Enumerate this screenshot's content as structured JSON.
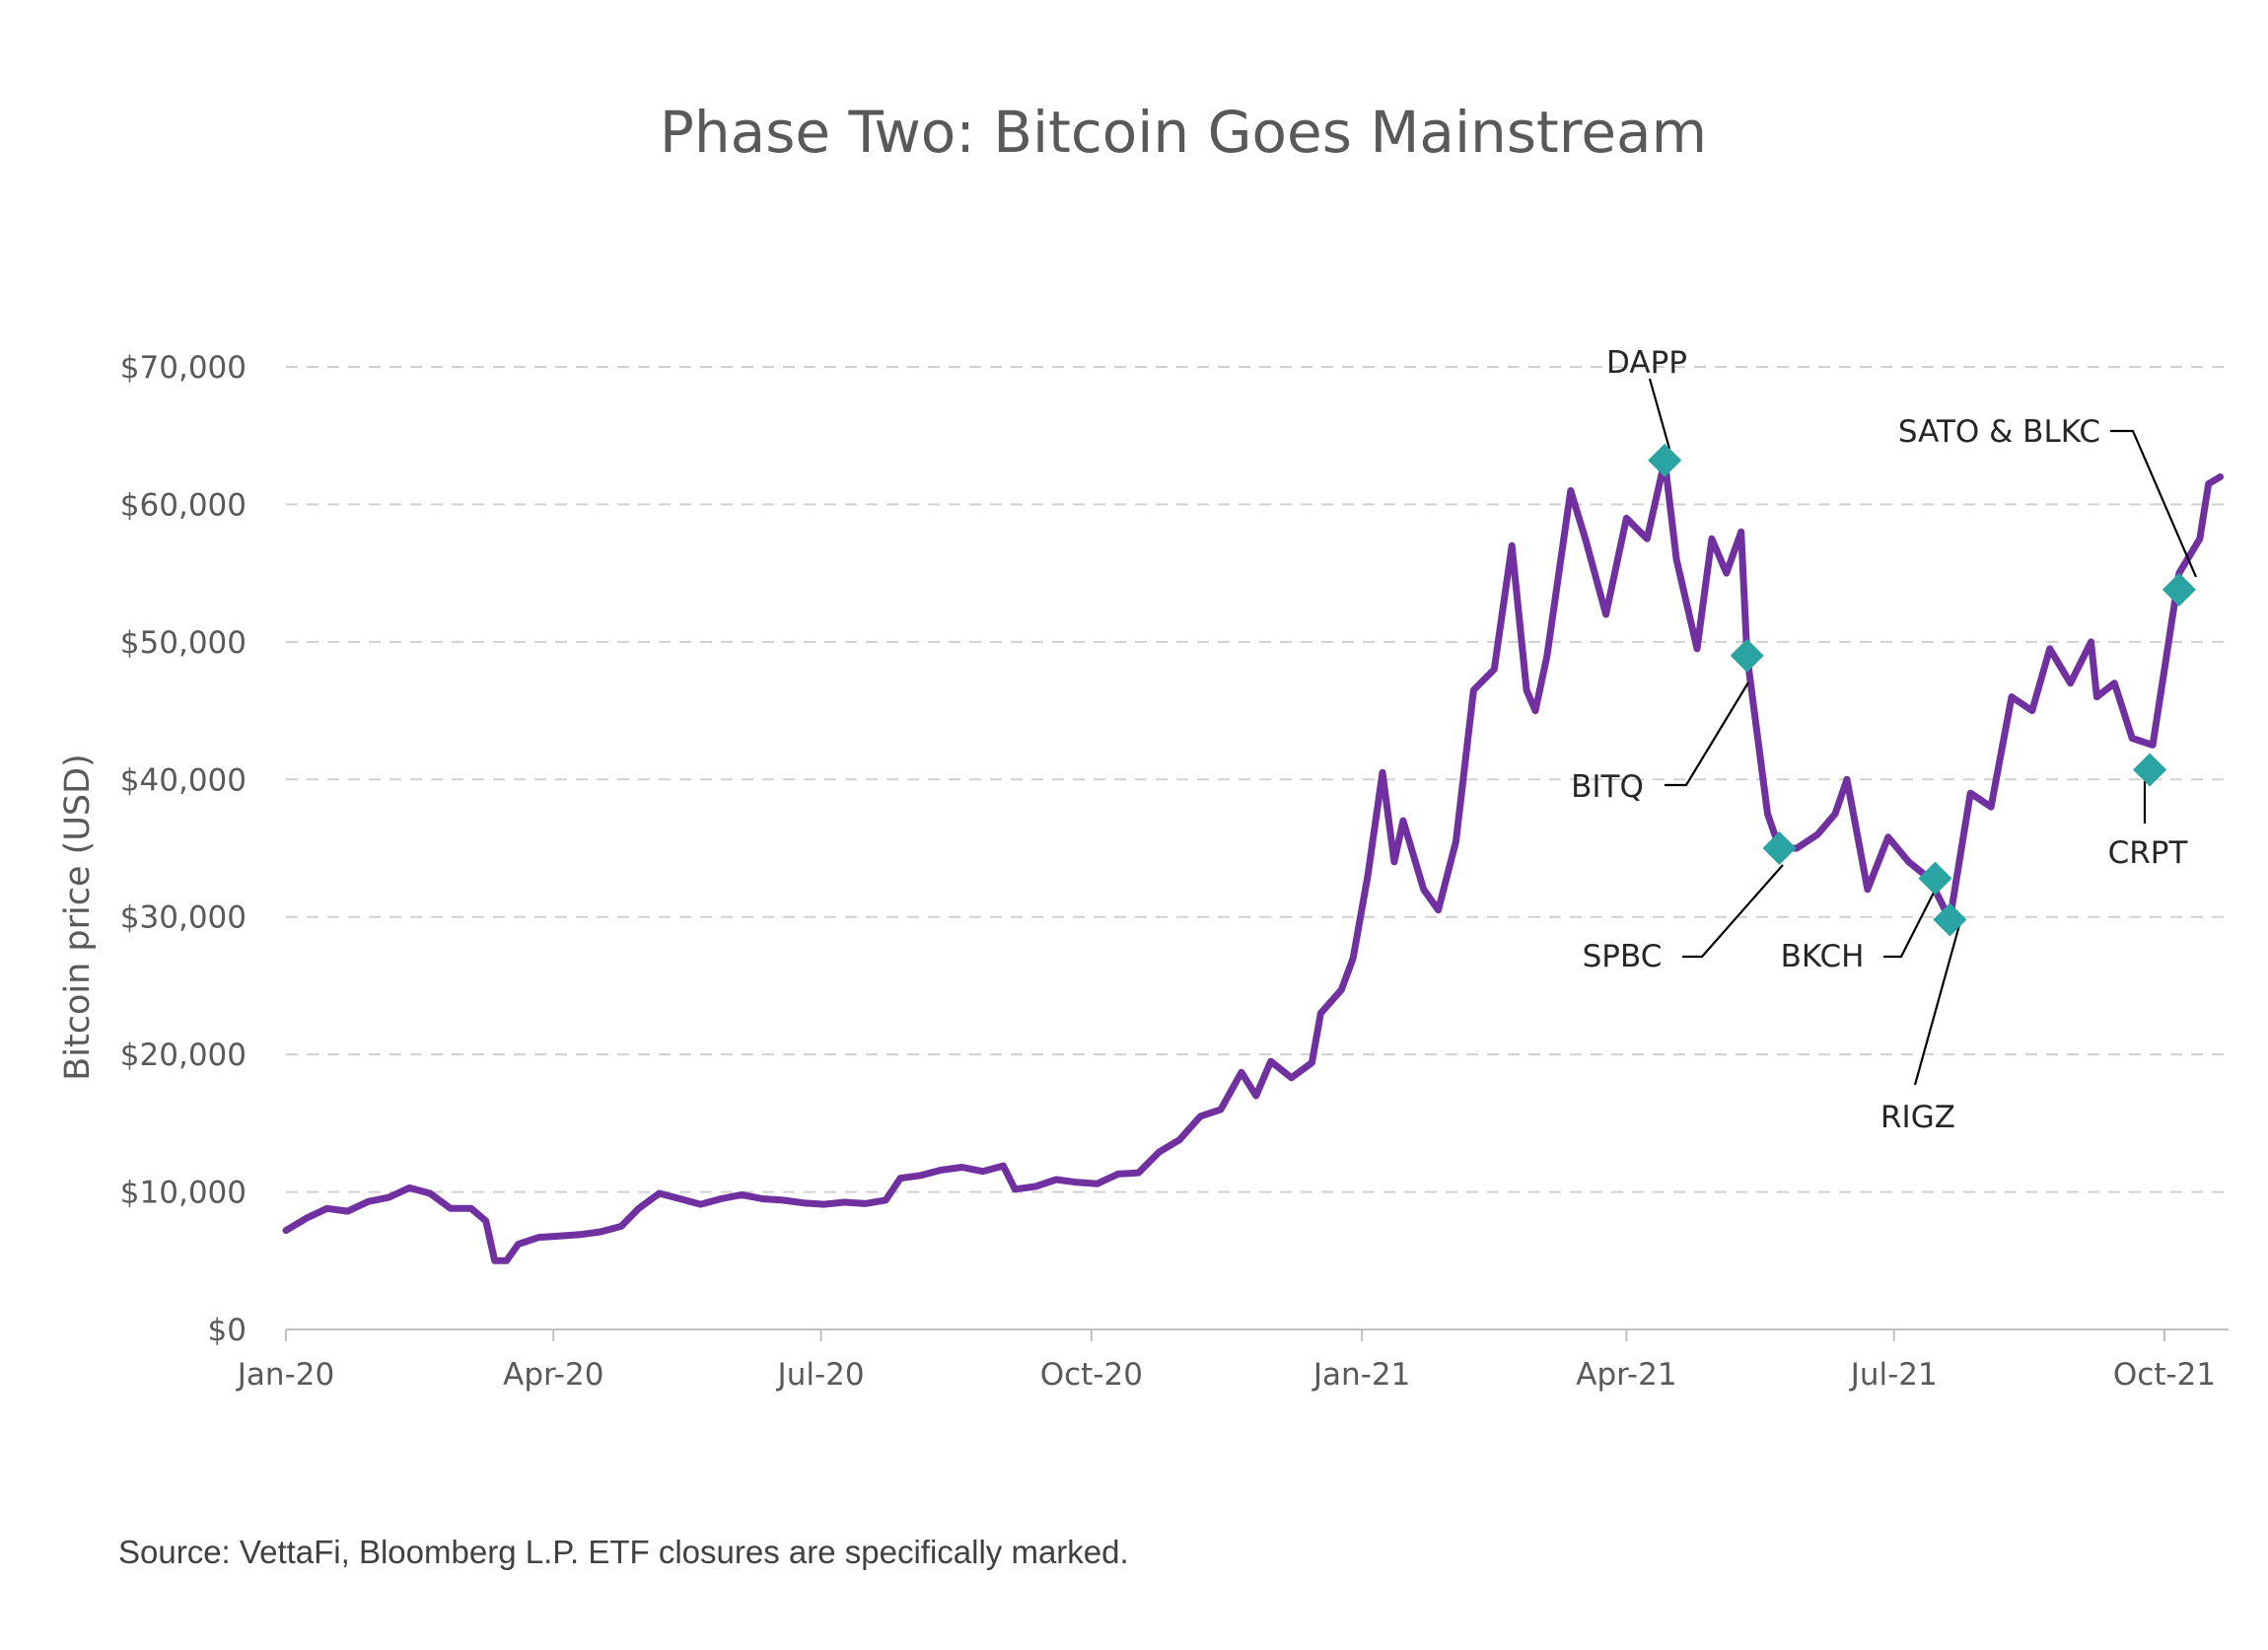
{
  "chart_data": {
    "type": "line",
    "title": "Phase Two: Bitcoin Goes Mainstream",
    "ylabel": "Bitcoin price (USD)",
    "xlabel": "",
    "ylim": [
      0,
      70000
    ],
    "yticks": [
      0,
      10000,
      20000,
      30000,
      40000,
      50000,
      60000,
      70000
    ],
    "ytick_labels": [
      "$0",
      "$10,000",
      "$20,000",
      "$30,000",
      "$40,000",
      "$50,000",
      "$60,000",
      "$70,000"
    ],
    "xticks": [
      "2020-01-01",
      "2020-04-01",
      "2020-07-01",
      "2020-10-01",
      "2021-01-01",
      "2021-04-01",
      "2021-07-01",
      "2021-10-01"
    ],
    "xtick_labels": [
      "Jan-20",
      "Apr-20",
      "Jul-20",
      "Oct-20",
      "Jan-21",
      "Apr-21",
      "Jul-21",
      "Oct-21"
    ],
    "xlim": [
      "2020-01-01",
      "2021-10-20"
    ],
    "grid": "horizontal-dashed",
    "line_color": "#7030a0",
    "marker_color": "#2aa3a3",
    "series": [
      {
        "values": [
          [
            "2020-01-01",
            7200
          ],
          [
            "2020-01-08",
            8100
          ],
          [
            "2020-01-15",
            8800
          ],
          [
            "2020-01-22",
            8600
          ],
          [
            "2020-01-29",
            9300
          ],
          [
            "2020-02-05",
            9600
          ],
          [
            "2020-02-12",
            10300
          ],
          [
            "2020-02-19",
            9900
          ],
          [
            "2020-02-26",
            8800
          ],
          [
            "2020-03-04",
            8800
          ],
          [
            "2020-03-09",
            7900
          ],
          [
            "2020-03-12",
            5000
          ],
          [
            "2020-03-16",
            5000
          ],
          [
            "2020-03-20",
            6200
          ],
          [
            "2020-03-27",
            6700
          ],
          [
            "2020-04-03",
            6800
          ],
          [
            "2020-04-10",
            6900
          ],
          [
            "2020-04-17",
            7100
          ],
          [
            "2020-04-24",
            7500
          ],
          [
            "2020-04-30",
            8800
          ],
          [
            "2020-05-07",
            9900
          ],
          [
            "2020-05-14",
            9500
          ],
          [
            "2020-05-21",
            9100
          ],
          [
            "2020-05-28",
            9500
          ],
          [
            "2020-06-04",
            9800
          ],
          [
            "2020-06-11",
            9500
          ],
          [
            "2020-06-18",
            9400
          ],
          [
            "2020-06-25",
            9200
          ],
          [
            "2020-07-02",
            9100
          ],
          [
            "2020-07-09",
            9250
          ],
          [
            "2020-07-16",
            9150
          ],
          [
            "2020-07-23",
            9400
          ],
          [
            "2020-07-28",
            11000
          ],
          [
            "2020-08-04",
            11200
          ],
          [
            "2020-08-11",
            11600
          ],
          [
            "2020-08-18",
            11800
          ],
          [
            "2020-08-25",
            11500
          ],
          [
            "2020-09-01",
            11900
          ],
          [
            "2020-09-05",
            10200
          ],
          [
            "2020-09-12",
            10400
          ],
          [
            "2020-09-19",
            10900
          ],
          [
            "2020-09-26",
            10700
          ],
          [
            "2020-10-03",
            10600
          ],
          [
            "2020-10-10",
            11300
          ],
          [
            "2020-10-17",
            11400
          ],
          [
            "2020-10-24",
            12900
          ],
          [
            "2020-10-31",
            13800
          ],
          [
            "2020-11-07",
            15500
          ],
          [
            "2020-11-14",
            16000
          ],
          [
            "2020-11-21",
            18700
          ],
          [
            "2020-11-26",
            17000
          ],
          [
            "2020-12-01",
            19500
          ],
          [
            "2020-12-08",
            18300
          ],
          [
            "2020-12-15",
            19400
          ],
          [
            "2020-12-18",
            23000
          ],
          [
            "2020-12-25",
            24700
          ],
          [
            "2020-12-29",
            27000
          ],
          [
            "2021-01-03",
            33000
          ],
          [
            "2021-01-08",
            40500
          ],
          [
            "2021-01-12",
            34000
          ],
          [
            "2021-01-15",
            37000
          ],
          [
            "2021-01-22",
            32000
          ],
          [
            "2021-01-27",
            30500
          ],
          [
            "2021-02-02",
            35500
          ],
          [
            "2021-02-08",
            46500
          ],
          [
            "2021-02-15",
            48000
          ],
          [
            "2021-02-21",
            57000
          ],
          [
            "2021-02-26",
            46500
          ],
          [
            "2021-03-01",
            45000
          ],
          [
            "2021-03-05",
            49000
          ],
          [
            "2021-03-13",
            61000
          ],
          [
            "2021-03-18",
            57500
          ],
          [
            "2021-03-25",
            52000
          ],
          [
            "2021-04-01",
            59000
          ],
          [
            "2021-04-08",
            57500
          ],
          [
            "2021-04-14",
            63200
          ],
          [
            "2021-04-18",
            56000
          ],
          [
            "2021-04-25",
            49500
          ],
          [
            "2021-04-30",
            57500
          ],
          [
            "2021-05-05",
            55000
          ],
          [
            "2021-05-10",
            58000
          ],
          [
            "2021-05-12",
            49000
          ],
          [
            "2021-05-19",
            37500
          ],
          [
            "2021-05-23",
            35000
          ],
          [
            "2021-05-29",
            35000
          ],
          [
            "2021-06-05",
            36000
          ],
          [
            "2021-06-11",
            37500
          ],
          [
            "2021-06-15",
            40000
          ],
          [
            "2021-06-22",
            32000
          ],
          [
            "2021-06-29",
            35800
          ],
          [
            "2021-07-06",
            34000
          ],
          [
            "2021-07-13",
            32800
          ],
          [
            "2021-07-20",
            29800
          ],
          [
            "2021-07-27",
            39000
          ],
          [
            "2021-08-03",
            38000
          ],
          [
            "2021-08-10",
            46000
          ],
          [
            "2021-08-17",
            45000
          ],
          [
            "2021-08-23",
            49500
          ],
          [
            "2021-08-30",
            47000
          ],
          [
            "2021-09-06",
            50000
          ],
          [
            "2021-09-08",
            46000
          ],
          [
            "2021-09-14",
            47000
          ],
          [
            "2021-09-20",
            43000
          ],
          [
            "2021-09-27",
            42500
          ],
          [
            "2021-10-01",
            48000
          ],
          [
            "2021-10-06",
            55000
          ],
          [
            "2021-10-13",
            57500
          ],
          [
            "2021-10-16",
            61500
          ],
          [
            "2021-10-20",
            62000
          ]
        ]
      }
    ],
    "closures": [
      {
        "label": "DAPP",
        "date": "2021-04-14",
        "value": 63200
      },
      {
        "label": "BITQ",
        "date": "2021-05-12",
        "value": 49000
      },
      {
        "label": "SPBC",
        "date": "2021-05-23",
        "value": 35000
      },
      {
        "label": "BKCH",
        "date": "2021-07-15",
        "value": 32800
      },
      {
        "label": "RIGZ",
        "date": "2021-07-20",
        "value": 29800
      },
      {
        "label": "CRPT",
        "date": "2021-09-26",
        "value": 40700
      },
      {
        "label": "SATO & BLKC",
        "date": "2021-10-06",
        "value": 53800
      }
    ]
  },
  "source_note": "Source: VettaFi, Bloomberg L.P. ETF closures are specifically marked."
}
